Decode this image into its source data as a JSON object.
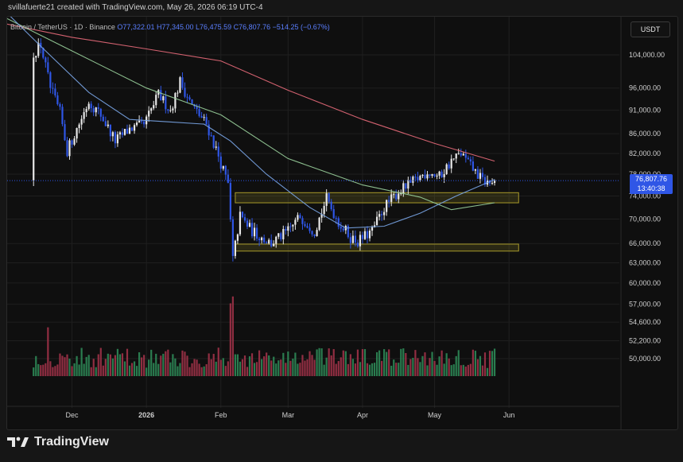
{
  "header": {
    "caption": "svillafuerte21 created with TradingView.com, May 26, 2026 06:19 UTC-4"
  },
  "legend": {
    "symbol": "Bitcoin / TetherUS · 1D · Binance",
    "open": "O77,322.01",
    "high": "H77,345.00",
    "low": "L76,475.59",
    "close": "C76,807.76",
    "change": "−514.25 (−0.67%)"
  },
  "currency_button": "USDT",
  "price_tag": {
    "price": "76,807.76",
    "countdown": "13:40:38"
  },
  "brand": {
    "name": "TradingView"
  },
  "colors": {
    "up": "#e8e8e8",
    "down": "#2f56e6",
    "vol_up": "#2f8f5b",
    "vol_down": "#a8344b",
    "ma_red": "#e86a7a",
    "ma_green": "#9ad29c",
    "ma_blue": "#7aa6e8",
    "zone": "#a89a2a"
  },
  "chart_data": {
    "type": "candlestick",
    "y_scale": "log",
    "ylim": [
      47500,
      118000
    ],
    "y_ticks": [
      "104,000.00",
      "96,000.00",
      "91,000.00",
      "86,000.00",
      "82,000.00",
      "78,000.00",
      "74,000.00",
      "70,000.00",
      "66,000.00",
      "63,000.00",
      "60,000.00",
      "57,000.00",
      "54,600.00",
      "52,200.00",
      "50,000.00"
    ],
    "x_ticks": [
      "Dec",
      "2026",
      "Feb",
      "Mar",
      "Apr",
      "May",
      "Jun"
    ],
    "close_path": [
      {
        "d": "2025-11-15",
        "p": 104500
      },
      {
        "d": "2025-11-18",
        "p": 106500
      },
      {
        "d": "2025-11-22",
        "p": 96000
      },
      {
        "d": "2025-11-26",
        "p": 90500
      },
      {
        "d": "2025-11-29",
        "p": 82500
      },
      {
        "d": "2025-12-03",
        "p": 87000
      },
      {
        "d": "2025-12-08",
        "p": 93000
      },
      {
        "d": "2025-12-13",
        "p": 90000
      },
      {
        "d": "2025-12-19",
        "p": 84500
      },
      {
        "d": "2025-12-25",
        "p": 87000
      },
      {
        "d": "2025-12-31",
        "p": 87800
      },
      {
        "d": "2026-01-06",
        "p": 94500
      },
      {
        "d": "2026-01-11",
        "p": 91000
      },
      {
        "d": "2026-01-15",
        "p": 97500
      },
      {
        "d": "2026-01-20",
        "p": 92000
      },
      {
        "d": "2026-01-26",
        "p": 88000
      },
      {
        "d": "2026-01-31",
        "p": 81500
      },
      {
        "d": "2026-02-04",
        "p": 76000
      },
      {
        "d": "2026-02-06",
        "p": 63500
      },
      {
        "d": "2026-02-09",
        "p": 70500
      },
      {
        "d": "2026-02-14",
        "p": 68000
      },
      {
        "d": "2026-02-22",
        "p": 66000
      },
      {
        "d": "2026-03-01",
        "p": 68000
      },
      {
        "d": "2026-03-06",
        "p": 70500
      },
      {
        "d": "2026-03-12",
        "p": 68000
      },
      {
        "d": "2026-03-17",
        "p": 73500
      },
      {
        "d": "2026-03-22",
        "p": 69500
      },
      {
        "d": "2026-03-27",
        "p": 67000
      },
      {
        "d": "2026-03-30",
        "p": 66300
      },
      {
        "d": "2026-04-05",
        "p": 68000
      },
      {
        "d": "2026-04-10",
        "p": 72000
      },
      {
        "d": "2026-04-16",
        "p": 74800
      },
      {
        "d": "2026-04-22",
        "p": 76500
      },
      {
        "d": "2026-04-28",
        "p": 78500
      },
      {
        "d": "2026-05-03",
        "p": 77500
      },
      {
        "d": "2026-05-08",
        "p": 80500
      },
      {
        "d": "2026-05-12",
        "p": 82000
      },
      {
        "d": "2026-05-16",
        "p": 79500
      },
      {
        "d": "2026-05-21",
        "p": 76800
      },
      {
        "d": "2026-05-24",
        "p": 76300
      },
      {
        "d": "2026-05-26",
        "p": 76807.76
      }
    ],
    "moving_averages": [
      {
        "color_key": "ma_red",
        "points": [
          {
            "d": "2025-11-04",
            "p": 112000
          },
          {
            "d": "2025-12-01",
            "p": 108500
          },
          {
            "d": "2026-01-01",
            "p": 105500
          },
          {
            "d": "2026-02-01",
            "p": 102500
          },
          {
            "d": "2026-03-01",
            "p": 95500
          },
          {
            "d": "2026-04-01",
            "p": 89000
          },
          {
            "d": "2026-05-01",
            "p": 84000
          },
          {
            "d": "2026-05-26",
            "p": 80500
          }
        ]
      },
      {
        "color_key": "ma_green",
        "points": [
          {
            "d": "2025-11-04",
            "p": 113500
          },
          {
            "d": "2025-12-01",
            "p": 105000
          },
          {
            "d": "2026-01-01",
            "p": 96000
          },
          {
            "d": "2026-02-01",
            "p": 90000
          },
          {
            "d": "2026-03-01",
            "p": 81000
          },
          {
            "d": "2026-04-01",
            "p": 76000
          },
          {
            "d": "2026-04-25",
            "p": 73800
          },
          {
            "d": "2026-05-08",
            "p": 71600
          },
          {
            "d": "2026-05-26",
            "p": 72800
          }
        ]
      },
      {
        "color_key": "ma_blue",
        "points": [
          {
            "d": "2025-11-04",
            "p": 115000
          },
          {
            "d": "2025-11-20",
            "p": 105000
          },
          {
            "d": "2025-12-08",
            "p": 95000
          },
          {
            "d": "2025-12-25",
            "p": 89000
          },
          {
            "d": "2026-01-10",
            "p": 88500
          },
          {
            "d": "2026-01-25",
            "p": 88000
          },
          {
            "d": "2026-02-05",
            "p": 84500
          },
          {
            "d": "2026-02-20",
            "p": 78000
          },
          {
            "d": "2026-03-10",
            "p": 72000
          },
          {
            "d": "2026-03-25",
            "p": 68500
          },
          {
            "d": "2026-04-10",
            "p": 68800
          },
          {
            "d": "2026-04-25",
            "p": 71000
          },
          {
            "d": "2026-05-10",
            "p": 74000
          },
          {
            "d": "2026-05-26",
            "p": 77000
          }
        ]
      }
    ],
    "zones": [
      {
        "from": "2026-02-07",
        "to": "2026-06-05",
        "low": 72800,
        "high": 74600
      },
      {
        "from": "2026-02-07",
        "to": "2026-06-05",
        "low": 64800,
        "high": 65900
      }
    ],
    "current_price": 76807.76
  }
}
